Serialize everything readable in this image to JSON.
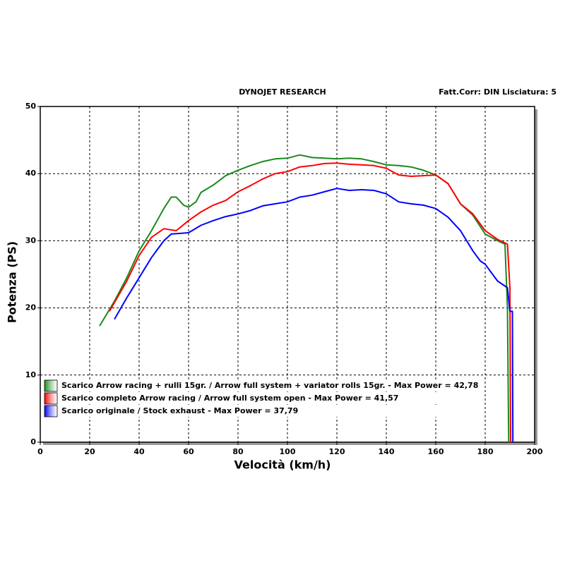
{
  "chart_data": {
    "type": "line",
    "header_left": "DYNOJET RESEARCH",
    "header_right": "Fatt.Corr: DIN  Lisciatura: 5",
    "x_label": "Velocità (km/h)",
    "y_label": "Potenza (PS)",
    "xlim": [
      0,
      200
    ],
    "xticks": [
      0,
      20,
      40,
      60,
      80,
      100,
      120,
      140,
      160,
      180,
      200
    ],
    "ylim": [
      0,
      50
    ],
    "yticks": [
      0,
      10,
      20,
      30,
      40,
      50
    ],
    "grid": true,
    "series": [
      {
        "name": "Scarico Arrow racing + rulli 15gr. / Arrow full system + variator rolls 15gr. - Max Power = 42,78",
        "color": "#1a8a1a",
        "x": [
          24,
          30,
          35,
          40,
          45,
          50,
          53,
          55,
          58,
          60,
          63,
          65,
          70,
          75,
          80,
          85,
          90,
          95,
          100,
          105,
          110,
          115,
          120,
          125,
          130,
          135,
          140,
          145,
          150,
          155,
          160,
          165,
          170,
          175,
          180,
          185,
          188,
          189,
          189.5
        ],
        "values": [
          17.3,
          21,
          24.5,
          28.5,
          31.5,
          34.8,
          36.5,
          36.5,
          35.3,
          35.0,
          35.8,
          37.2,
          38.3,
          39.7,
          40.5,
          41.2,
          41.8,
          42.2,
          42.3,
          42.78,
          42.4,
          42.3,
          42.2,
          42.3,
          42.2,
          41.8,
          41.3,
          41.2,
          41.0,
          40.5,
          39.8,
          38.5,
          35.5,
          33.8,
          31.0,
          30.0,
          29.5,
          20,
          0
        ]
      },
      {
        "name": "Scarico completo Arrow racing / Arrow full system open - Max Power = 41,57",
        "color": "#ff0000",
        "x": [
          28,
          35,
          40,
          45,
          50,
          55,
          60,
          65,
          70,
          75,
          80,
          85,
          90,
          95,
          100,
          105,
          110,
          115,
          120,
          125,
          130,
          135,
          140,
          145,
          150,
          155,
          160,
          165,
          170,
          175,
          180,
          185,
          189,
          190,
          190.3
        ],
        "values": [
          19.5,
          24,
          27.8,
          30.5,
          31.8,
          31.5,
          33.0,
          34.3,
          35.3,
          36.0,
          37.3,
          38.2,
          39.2,
          40.0,
          40.3,
          41.0,
          41.2,
          41.5,
          41.57,
          41.4,
          41.3,
          41.2,
          40.8,
          39.8,
          39.6,
          39.7,
          39.8,
          38.5,
          35.5,
          34.0,
          31.5,
          30.2,
          29.5,
          23,
          0
        ]
      },
      {
        "name": "Scarico originale / Stock exhaust - Max Power = 37,79",
        "color": "#0000ff",
        "x": [
          30,
          35,
          40,
          45,
          50,
          53,
          60,
          65,
          70,
          75,
          80,
          85,
          90,
          95,
          100,
          105,
          110,
          115,
          120,
          125,
          130,
          135,
          140,
          145,
          150,
          155,
          160,
          165,
          170,
          175,
          178,
          180,
          185,
          189,
          190,
          191,
          191.2
        ],
        "values": [
          18.3,
          21.5,
          24.5,
          27.5,
          30.0,
          31.0,
          31.2,
          32.3,
          33.0,
          33.6,
          34.0,
          34.5,
          35.2,
          35.5,
          35.8,
          36.5,
          36.8,
          37.3,
          37.79,
          37.5,
          37.6,
          37.5,
          37.0,
          35.8,
          35.5,
          35.3,
          34.8,
          33.5,
          31.5,
          28.5,
          27.0,
          26.5,
          24.0,
          23.0,
          19.5,
          19.5,
          0
        ]
      }
    ]
  }
}
